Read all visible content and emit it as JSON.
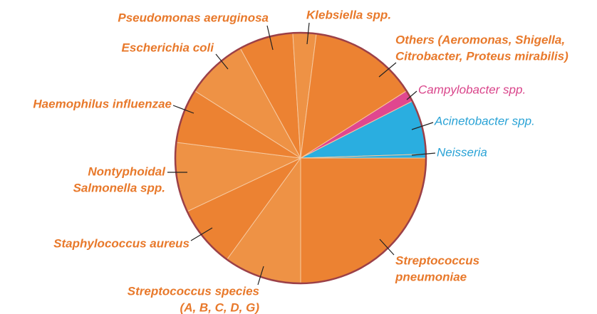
{
  "chart_data": {
    "type": "pie",
    "categories": [
      [
        "Streptococcus",
        "pneumoniae"
      ],
      [
        "Streptococcus species",
        "(A, B, C, D, G)"
      ],
      [
        "Staphylococcus aureus"
      ],
      [
        "Nontyphoidal",
        "Salmonella spp."
      ],
      [
        "Haemophilus influenzae"
      ],
      [
        "Escherichia coli"
      ],
      [
        "Pseudomonas aeruginosa"
      ],
      [
        "Klebsiella spp."
      ],
      [
        "Others (Aeromonas, Shigella,",
        "Citrobacter, Proteus mirabilis)"
      ],
      [
        "Campylobacter spp."
      ],
      [
        "Acinetobacter spp."
      ],
      [
        "Neisseria"
      ]
    ],
    "values": [
      25,
      10,
      8,
      9,
      7,
      8,
      7,
      3,
      14,
      1.5,
      7,
      0.5
    ],
    "colors": [
      "#ec8232",
      "#ee9245",
      "#ec8232",
      "#ee9245",
      "#ec8232",
      "#ee9245",
      "#ec8232",
      "#ee9245",
      "#ec8232",
      "#e0478f",
      "#2aaee0",
      "#2aaee0"
    ]
  }
}
